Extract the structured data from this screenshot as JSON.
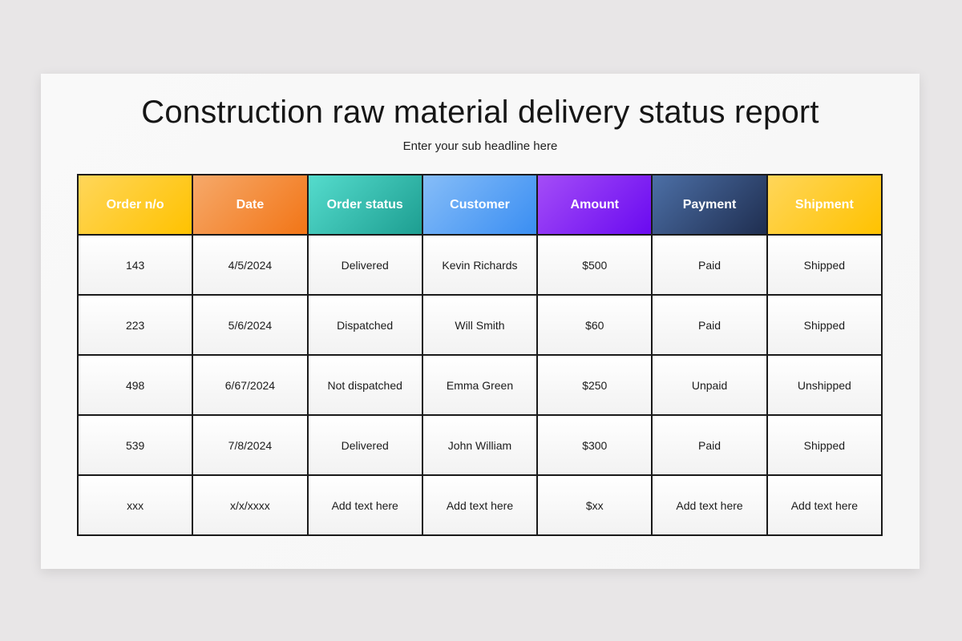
{
  "slide": {
    "title": "Construction raw material delivery status report",
    "subtitle": "Enter your sub headline here"
  },
  "table": {
    "headers": [
      {
        "label": "Order n/o",
        "color": "#ffc200"
      },
      {
        "label": "Date",
        "color": "#f27516"
      },
      {
        "label": "Order status",
        "color": "#1d9e91"
      },
      {
        "label": "Customer",
        "color": "#3a8ef2"
      },
      {
        "label": "Amount",
        "color": "#6a0af0"
      },
      {
        "label": "Payment",
        "color": "#1f2e50"
      },
      {
        "label": "Shipment",
        "color": "#ffc200"
      }
    ],
    "rows": [
      [
        "143",
        "4/5/2024",
        "Delivered",
        "Kevin Richards",
        "$500",
        "Paid",
        "Shipped"
      ],
      [
        "223",
        "5/6/2024",
        "Dispatched",
        "Will Smith",
        "$60",
        "Paid",
        "Shipped"
      ],
      [
        "498",
        "6/67/2024",
        "Not dispatched",
        "Emma Green",
        "$250",
        "Unpaid",
        "Unshipped"
      ],
      [
        "539",
        "7/8/2024",
        "Delivered",
        "John William",
        "$300",
        "Paid",
        "Shipped"
      ],
      [
        "xxx",
        "x/x/xxxx",
        "Add text here",
        "Add text here",
        "$xx",
        "Add text here",
        "Add text here"
      ]
    ]
  }
}
